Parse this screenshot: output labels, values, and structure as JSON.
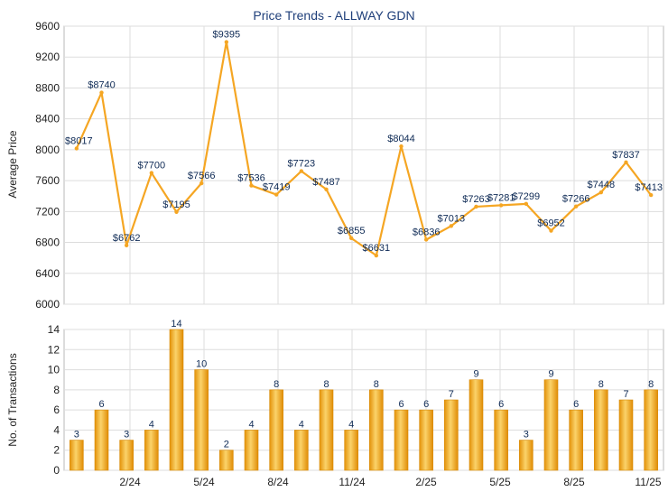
{
  "chart_data": [
    {
      "type": "line",
      "title": "Price Trends - ALLWAY GDN",
      "ylabel": "Average Price",
      "ylim": [
        6000,
        9600
      ],
      "yticks": [
        6000,
        6400,
        6800,
        7200,
        7600,
        8000,
        8400,
        8800,
        9200,
        9600
      ],
      "xticks": [
        "2/24",
        "5/24",
        "8/24",
        "11/24",
        "2/25",
        "5/25",
        "8/25",
        "11/25"
      ],
      "grid": true,
      "line_color": "#f5a623",
      "series": [
        {
          "values": [
            8017,
            8740,
            6762,
            7700,
            7195,
            7566,
            9395,
            7536,
            7419,
            7723,
            7487,
            6855,
            6631,
            8044,
            6836,
            7013,
            7263,
            7281,
            7299,
            6952,
            7266,
            7448,
            7837,
            7413
          ],
          "labels": [
            "$8017",
            "$8740",
            "$6762",
            "$7700",
            "$7195",
            "$7566",
            "$9395",
            "$7536",
            "$7419",
            "$7723",
            "$7487",
            "$6855",
            "$6631",
            "$8044",
            "$6836",
            "$7013",
            "$7263",
            "$7281",
            "$7299",
            "$6952",
            "$7266",
            "$7448",
            "$7837",
            "$7413"
          ]
        }
      ]
    },
    {
      "type": "bar",
      "ylabel": "No. of Transactions",
      "ylim": [
        0,
        14
      ],
      "yticks": [
        0,
        2,
        4,
        6,
        8,
        10,
        12,
        14
      ],
      "xticks": [
        "2/24",
        "5/24",
        "8/24",
        "11/24",
        "2/25",
        "5/25",
        "8/25",
        "11/25"
      ],
      "grid": true,
      "bar_color": "#f5a623",
      "series": [
        {
          "values": [
            3,
            6,
            3,
            4,
            14,
            10,
            2,
            4,
            8,
            4,
            8,
            4,
            8,
            6,
            6,
            7,
            9,
            6,
            3,
            9,
            6,
            8,
            7,
            8
          ],
          "labels": [
            "3",
            "6",
            "3",
            "4",
            "14",
            "10",
            "2",
            "4",
            "8",
            "4",
            "8",
            "4",
            "8",
            "6",
            "6",
            "7",
            "9",
            "6",
            "3",
            "9",
            "6",
            "8",
            "7",
            "8"
          ]
        }
      ]
    }
  ]
}
